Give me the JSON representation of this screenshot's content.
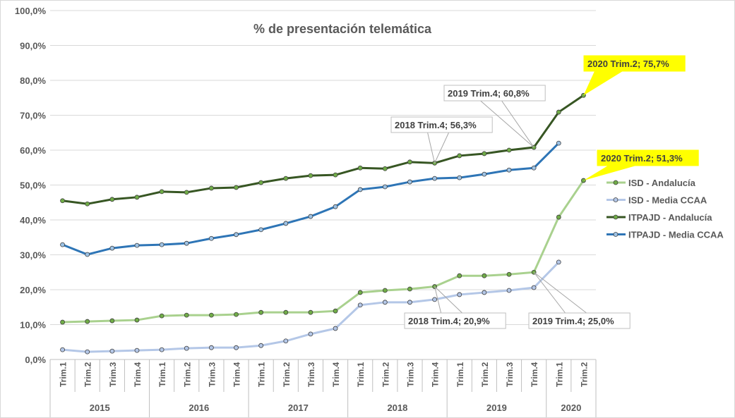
{
  "chart_data": {
    "type": "line",
    "title": "% de presentación telemática",
    "xlabel": "",
    "ylabel": "",
    "ylim": [
      0,
      100
    ],
    "yticks": [
      "0,0%",
      "10,0%",
      "20,0%",
      "30,0%",
      "40,0%",
      "50,0%",
      "60,0%",
      "70,0%",
      "80,0%",
      "90,0%",
      "100,0%"
    ],
    "categories": [
      "Trim.1",
      "Trim.2",
      "Trim.3",
      "Trim.4",
      "Trim.1",
      "Trim.2",
      "Trim.3",
      "Trim.4",
      "Trim.1",
      "Trim.2",
      "Trim.3",
      "Trim.4",
      "Trim.1",
      "Trim.2",
      "Trim.3",
      "Trim.4",
      "Trim.1",
      "Trim.2",
      "Trim.3",
      "Trim.4",
      "Trim.1",
      "Trim.2"
    ],
    "years": [
      {
        "label": "2015",
        "count": 4
      },
      {
        "label": "2016",
        "count": 4
      },
      {
        "label": "2017",
        "count": 4
      },
      {
        "label": "2018",
        "count": 4
      },
      {
        "label": "2019",
        "count": 4
      },
      {
        "label": "2020",
        "count": 2
      }
    ],
    "grid": true,
    "legend_position": "right",
    "series": [
      {
        "name": "ISD - Andalucía",
        "color": "#a9d18e",
        "marker": "#70ad47",
        "width": 3,
        "values": [
          10.7,
          10.9,
          11.1,
          11.3,
          12.5,
          12.7,
          12.7,
          12.9,
          13.5,
          13.5,
          13.5,
          13.9,
          19.2,
          19.8,
          20.2,
          20.9,
          24.0,
          24.0,
          24.4,
          25.0,
          40.8,
          51.3
        ]
      },
      {
        "name": "ISD - Media CCAA",
        "color": "#b4c7e7",
        "marker": "#b4c7e7",
        "width": 3,
        "values": [
          2.8,
          2.2,
          2.4,
          2.6,
          2.8,
          3.2,
          3.4,
          3.4,
          4.0,
          5.3,
          7.3,
          8.9,
          15.6,
          16.4,
          16.4,
          17.2,
          18.6,
          19.2,
          19.8,
          20.6,
          27.9,
          null
        ]
      },
      {
        "name": "ITPAJD - Andalucía",
        "color": "#375623",
        "marker": "#70ad47",
        "width": 3,
        "values": [
          45.5,
          44.6,
          45.9,
          46.5,
          48.1,
          47.9,
          49.1,
          49.3,
          50.7,
          51.9,
          52.7,
          52.9,
          54.9,
          54.7,
          56.6,
          56.3,
          58.4,
          59.0,
          60.0,
          60.8,
          70.9,
          75.7
        ]
      },
      {
        "name": "ITPAJD - Media CCAA",
        "color": "#2e75b6",
        "marker": "#9dc3e6",
        "width": 3,
        "values": [
          32.9,
          30.1,
          31.9,
          32.7,
          32.9,
          33.3,
          34.7,
          35.8,
          37.2,
          39.0,
          41.0,
          43.8,
          48.7,
          49.5,
          50.9,
          51.9,
          52.1,
          53.1,
          54.3,
          54.9,
          62.0,
          null
        ]
      }
    ],
    "annotations": [
      {
        "text": "2020 Trim.2; 75,7%",
        "series": 2,
        "index": 21,
        "highlight": true
      },
      {
        "text": "2019 Trim.4; 60,8%",
        "series": 2,
        "index": 19,
        "highlight": false
      },
      {
        "text": "2018 Trim.4; 56,3%",
        "series": 2,
        "index": 15,
        "highlight": false
      },
      {
        "text": "2020 Trim.2; 51,3%",
        "series": 0,
        "index": 21,
        "highlight": true
      },
      {
        "text": "2018 Trim.4; 20,9%",
        "series": 0,
        "index": 15,
        "highlight": false
      },
      {
        "text": "2019 Trim.4; 25,0%",
        "series": 0,
        "index": 19,
        "highlight": false
      }
    ]
  }
}
